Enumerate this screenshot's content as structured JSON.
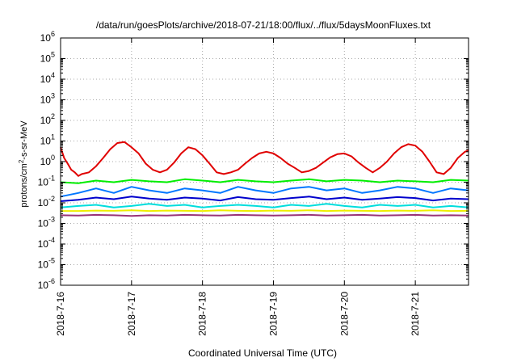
{
  "chart_data": {
    "type": "line",
    "title": "/data/run/goesPlots/archive/2018-07-21/18:00/flux/../flux/5daysMoonFluxes.txt",
    "xlabel": "Coordinated Universal Time (UTC)",
    "ylabel": "protons/cm²-s-sr-MeV",
    "yscale": "log",
    "ylim": [
      1e-06,
      1000000.0
    ],
    "y_ticks": [
      "10-6",
      "10-5",
      "10-4",
      "10-3",
      "10-2",
      "10-1",
      "100",
      "101",
      "102",
      "103",
      "104",
      "105",
      "106"
    ],
    "x_unit": "days since 2018-07-16 00:00 UTC",
    "xlim": [
      0,
      5.75
    ],
    "x_ticks": [
      {
        "x": 0,
        "label": "2018-7-16"
      },
      {
        "x": 1,
        "label": "2018-7-17"
      },
      {
        "x": 2,
        "label": "2018-7-18"
      },
      {
        "x": 3,
        "label": "2018-7-19"
      },
      {
        "x": 4,
        "label": "2018-7-20"
      },
      {
        "x": 5,
        "label": "2018-7-21"
      }
    ],
    "grid": true,
    "legend": "none",
    "series": [
      {
        "color": "#e00000",
        "x": [
          0.0,
          0.05,
          0.1,
          0.15,
          0.2,
          0.25,
          0.3,
          0.4,
          0.5,
          0.6,
          0.7,
          0.8,
          0.9,
          1.0,
          1.1,
          1.2,
          1.3,
          1.4,
          1.5,
          1.6,
          1.7,
          1.8,
          1.9,
          2.0,
          2.1,
          2.2,
          2.3,
          2.4,
          2.5,
          2.6,
          2.7,
          2.8,
          2.9,
          3.0,
          3.1,
          3.2,
          3.3,
          3.4,
          3.5,
          3.6,
          3.7,
          3.8,
          3.9,
          4.0,
          4.1,
          4.2,
          4.3,
          4.4,
          4.5,
          4.6,
          4.7,
          4.8,
          4.9,
          5.0,
          5.1,
          5.2,
          5.3,
          5.4,
          5.5,
          5.6,
          5.7,
          5.75
        ],
        "values": [
          5,
          1.5,
          0.8,
          0.4,
          0.3,
          0.2,
          0.25,
          0.3,
          0.6,
          1.5,
          4,
          8,
          9,
          5,
          2.5,
          0.8,
          0.4,
          0.3,
          0.4,
          0.9,
          2.5,
          5,
          4,
          2,
          0.8,
          0.3,
          0.25,
          0.3,
          0.4,
          0.8,
          1.5,
          2.5,
          3,
          2.5,
          1.5,
          0.8,
          0.5,
          0.3,
          0.35,
          0.5,
          0.9,
          1.6,
          2.3,
          2.5,
          1.8,
          0.9,
          0.5,
          0.3,
          0.5,
          1,
          2.5,
          5,
          7,
          6,
          3,
          1,
          0.3,
          0.25,
          0.5,
          1.5,
          3,
          3.5
        ]
      },
      {
        "color": "#00ee00",
        "x": [
          0.0,
          0.25,
          0.5,
          0.75,
          1.0,
          1.25,
          1.5,
          1.75,
          2.0,
          2.25,
          2.5,
          2.75,
          3.0,
          3.25,
          3.5,
          3.75,
          4.0,
          4.25,
          4.5,
          4.75,
          5.0,
          5.25,
          5.5,
          5.75
        ],
        "values": [
          0.1,
          0.09,
          0.12,
          0.1,
          0.13,
          0.11,
          0.1,
          0.14,
          0.12,
          0.1,
          0.13,
          0.11,
          0.1,
          0.12,
          0.14,
          0.11,
          0.13,
          0.12,
          0.1,
          0.12,
          0.11,
          0.1,
          0.13,
          0.12
        ]
      },
      {
        "color": "#00dddd",
        "x": [
          0.0,
          0.25,
          0.5,
          0.75,
          1.0,
          1.25,
          1.5,
          1.75,
          2.0,
          2.25,
          2.5,
          2.75,
          3.0,
          3.25,
          3.5,
          3.75,
          4.0,
          4.25,
          4.5,
          4.75,
          5.0,
          5.25,
          5.5,
          5.75
        ],
        "values": [
          0.006,
          0.007,
          0.008,
          0.006,
          0.007,
          0.009,
          0.007,
          0.008,
          0.006,
          0.007,
          0.008,
          0.007,
          0.006,
          0.008,
          0.007,
          0.009,
          0.007,
          0.006,
          0.008,
          0.007,
          0.008,
          0.006,
          0.007,
          0.006
        ]
      },
      {
        "color": "#0077ff",
        "x": [
          0.0,
          0.25,
          0.5,
          0.75,
          1.0,
          1.25,
          1.5,
          1.75,
          2.0,
          2.25,
          2.5,
          2.75,
          3.0,
          3.25,
          3.5,
          3.75,
          4.0,
          4.25,
          4.5,
          4.75,
          5.0,
          5.25,
          5.5,
          5.75
        ],
        "values": [
          0.02,
          0.03,
          0.05,
          0.03,
          0.06,
          0.04,
          0.03,
          0.05,
          0.04,
          0.03,
          0.06,
          0.04,
          0.03,
          0.05,
          0.06,
          0.04,
          0.05,
          0.03,
          0.04,
          0.06,
          0.05,
          0.03,
          0.05,
          0.04
        ]
      },
      {
        "color": "#0000cc",
        "x": [
          0.0,
          0.25,
          0.5,
          0.75,
          1.0,
          1.25,
          1.5,
          1.75,
          2.0,
          2.25,
          2.5,
          2.75,
          3.0,
          3.25,
          3.5,
          3.75,
          4.0,
          4.25,
          4.5,
          4.75,
          5.0,
          5.25,
          5.5,
          5.75
        ],
        "values": [
          0.012,
          0.014,
          0.018,
          0.015,
          0.02,
          0.016,
          0.014,
          0.018,
          0.016,
          0.013,
          0.019,
          0.015,
          0.014,
          0.017,
          0.02,
          0.015,
          0.018,
          0.014,
          0.016,
          0.019,
          0.017,
          0.013,
          0.016,
          0.015
        ]
      },
      {
        "color": "#eeee00",
        "x": [
          0.0,
          0.25,
          0.5,
          0.75,
          1.0,
          1.25,
          1.5,
          1.75,
          2.0,
          2.25,
          2.5,
          2.75,
          3.0,
          3.25,
          3.5,
          3.75,
          4.0,
          4.25,
          4.5,
          4.75,
          5.0,
          5.25,
          5.5,
          5.75
        ],
        "values": [
          0.004,
          0.004,
          0.0042,
          0.0041,
          0.0043,
          0.004,
          0.0042,
          0.0041,
          0.004,
          0.0043,
          0.0041,
          0.004,
          0.0042,
          0.0041,
          0.0043,
          0.004,
          0.0042,
          0.0041,
          0.004,
          0.0042,
          0.0041,
          0.0043,
          0.004,
          0.0041
        ]
      },
      {
        "color": "#993377",
        "x": [
          0.0,
          0.25,
          0.5,
          0.75,
          1.0,
          1.25,
          1.5,
          1.75,
          2.0,
          2.25,
          2.5,
          2.75,
          3.0,
          3.25,
          3.5,
          3.75,
          4.0,
          4.25,
          4.5,
          4.75,
          5.0,
          5.25,
          5.5,
          5.75
        ],
        "values": [
          0.0025,
          0.0024,
          0.0026,
          0.0025,
          0.0023,
          0.0025,
          0.0024,
          0.0026,
          0.0025,
          0.0024,
          0.0026,
          0.0025,
          0.0024,
          0.0025,
          0.0026,
          0.0024,
          0.0025,
          0.0026,
          0.0024,
          0.0025,
          0.0026,
          0.0024,
          0.0025,
          0.0024
        ]
      }
    ]
  }
}
